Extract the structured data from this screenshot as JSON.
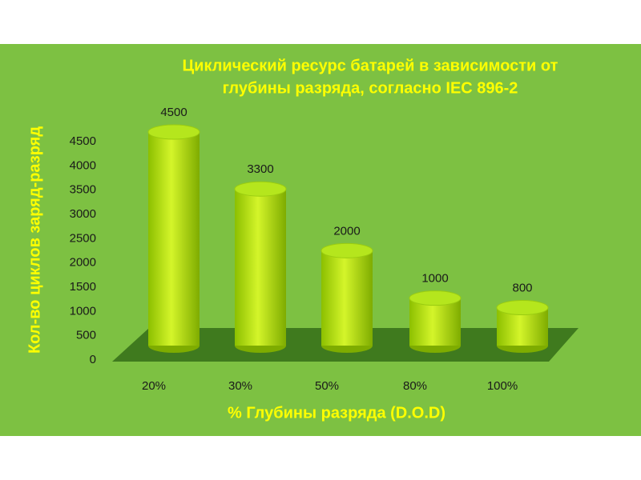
{
  "chart_data": {
    "type": "bar3d",
    "title": [
      "Циклический  ресурс батарей в зависимости от",
      "глубины разряда, согласно IEC 896-2"
    ],
    "y_label": "Кол-во циклов заряд-разряд",
    "x_label": "% Глубины разряда (D.O.D)",
    "categories": [
      "20%",
      "30%",
      "50%",
      "80%",
      "100%"
    ],
    "values": [
      4500,
      3300,
      2000,
      1000,
      800
    ],
    "color": "#b5e61d",
    "ylim": [
      0,
      4500
    ],
    "yticks": [
      0,
      500,
      1000,
      1500,
      2000,
      2500,
      3000,
      3500,
      4000,
      4500
    ],
    "grid": false
  }
}
